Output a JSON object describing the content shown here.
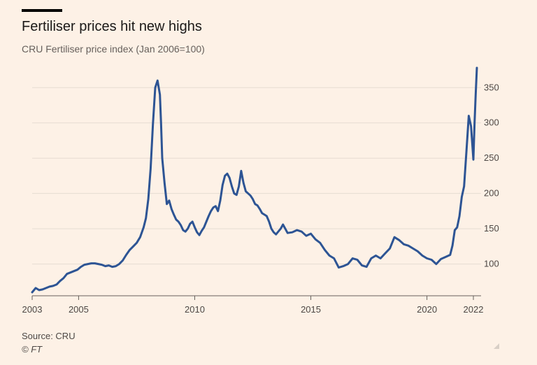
{
  "header": {
    "title": "Fertiliser prices hit new highs",
    "subtitle": "CRU Fertiliser price index (Jan 2006=100)"
  },
  "footer": {
    "source": "Source: CRU",
    "credit": "© FT"
  },
  "colors": {
    "background": "#fdf1e6",
    "line": "#2d5494",
    "grid": "#e6dcd2",
    "axis": "#66605c"
  },
  "chart_data": {
    "type": "line",
    "title": "Fertiliser prices hit new highs",
    "subtitle": "CRU Fertiliser price index (Jan 2006=100)",
    "xlabel": "",
    "ylabel": "",
    "xlim": [
      2003.0,
      2022.15
    ],
    "ylim": [
      55,
      380
    ],
    "grid": true,
    "y_axis_side": "right",
    "x_ticks": [
      {
        "value": 2003,
        "label": "2003"
      },
      {
        "value": 2005,
        "label": "2005"
      },
      {
        "value": 2010,
        "label": "2010"
      },
      {
        "value": 2015,
        "label": "2015"
      },
      {
        "value": 2020,
        "label": "2020"
      },
      {
        "value": 2022,
        "label": "2022"
      }
    ],
    "y_ticks": [
      {
        "value": 100,
        "label": "100"
      },
      {
        "value": 150,
        "label": "150"
      },
      {
        "value": 200,
        "label": "200"
      },
      {
        "value": 250,
        "label": "250"
      },
      {
        "value": 300,
        "label": "300"
      },
      {
        "value": 350,
        "label": "350"
      }
    ],
    "series": [
      {
        "name": "CRU Fertiliser price index",
        "x": [
          2003.0,
          2003.15,
          2003.3,
          2003.45,
          2003.6,
          2003.75,
          2003.9,
          2004.05,
          2004.2,
          2004.35,
          2004.5,
          2004.65,
          2004.8,
          2004.95,
          2005.1,
          2005.25,
          2005.4,
          2005.55,
          2005.7,
          2005.85,
          2006.0,
          2006.15,
          2006.3,
          2006.45,
          2006.6,
          2006.75,
          2006.9,
          2007.05,
          2007.2,
          2007.35,
          2007.5,
          2007.65,
          2007.8,
          2007.9,
          2008.0,
          2008.1,
          2008.2,
          2008.3,
          2008.4,
          2008.5,
          2008.55,
          2008.6,
          2008.7,
          2008.8,
          2008.9,
          2009.0,
          2009.1,
          2009.2,
          2009.3,
          2009.4,
          2009.5,
          2009.6,
          2009.7,
          2009.8,
          2009.9,
          2010.0,
          2010.1,
          2010.2,
          2010.3,
          2010.4,
          2010.5,
          2010.6,
          2010.7,
          2010.8,
          2010.9,
          2011.0,
          2011.1,
          2011.2,
          2011.3,
          2011.4,
          2011.5,
          2011.6,
          2011.7,
          2011.8,
          2011.9,
          2012.0,
          2012.1,
          2012.2,
          2012.3,
          2012.4,
          2012.5,
          2012.6,
          2012.7,
          2012.8,
          2012.9,
          2013.0,
          2013.1,
          2013.2,
          2013.3,
          2013.4,
          2013.5,
          2013.6,
          2013.7,
          2013.8,
          2013.9,
          2014.0,
          2014.2,
          2014.4,
          2014.6,
          2014.8,
          2015.0,
          2015.2,
          2015.4,
          2015.6,
          2015.8,
          2016.0,
          2016.2,
          2016.4,
          2016.6,
          2016.8,
          2017.0,
          2017.2,
          2017.4,
          2017.6,
          2017.8,
          2018.0,
          2018.2,
          2018.4,
          2018.6,
          2018.8,
          2019.0,
          2019.2,
          2019.4,
          2019.6,
          2019.8,
          2020.0,
          2020.2,
          2020.4,
          2020.6,
          2020.8,
          2021.0,
          2021.1,
          2021.2,
          2021.3,
          2021.4,
          2021.5,
          2021.6,
          2021.7,
          2021.8,
          2021.9,
          2022.0,
          2022.05,
          2022.1,
          2022.15
        ],
        "values": [
          60,
          66,
          63,
          64,
          66,
          68,
          69,
          71,
          76,
          80,
          86,
          88,
          90,
          92,
          96,
          99,
          100,
          101,
          101,
          100,
          99,
          97,
          98,
          96,
          97,
          100,
          105,
          113,
          120,
          125,
          130,
          138,
          152,
          165,
          192,
          235,
          298,
          350,
          360,
          340,
          300,
          250,
          215,
          185,
          190,
          178,
          170,
          163,
          160,
          155,
          148,
          146,
          150,
          157,
          160,
          152,
          145,
          141,
          147,
          152,
          160,
          168,
          175,
          180,
          182,
          175,
          190,
          212,
          225,
          228,
          222,
          210,
          200,
          198,
          210,
          232,
          215,
          203,
          200,
          197,
          192,
          185,
          183,
          178,
          172,
          170,
          168,
          160,
          150,
          145,
          142,
          146,
          150,
          156,
          150,
          144,
          145,
          148,
          146,
          140,
          143,
          135,
          130,
          120,
          112,
          108,
          95,
          97,
          100,
          108,
          106,
          98,
          96,
          108,
          112,
          108,
          115,
          122,
          138,
          134,
          128,
          126,
          122,
          118,
          112,
          108,
          106,
          100,
          107,
          110,
          113,
          126,
          148,
          152,
          168,
          195,
          210,
          260,
          310,
          295,
          248,
          300,
          340,
          378
        ]
      }
    ]
  }
}
